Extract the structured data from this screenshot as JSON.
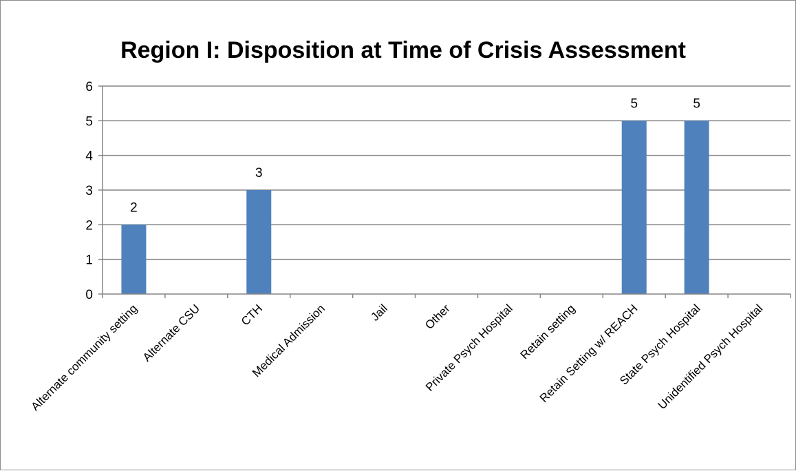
{
  "chart_data": {
    "type": "bar",
    "title": "Region I: Disposition at Time of Crisis Assessment",
    "xlabel": "",
    "ylabel": "",
    "categories": [
      "Alternate community setting",
      "Alternate CSU",
      "CTH",
      "Medical Admission",
      "Jail",
      "Other",
      "Private Psych Hospital",
      "Retain setting",
      "Retain Setting w/ REACH",
      "State Psych Hospital",
      "Unidentified Psych Hospital"
    ],
    "values": [
      2,
      0,
      3,
      0,
      0,
      0,
      0,
      0,
      5,
      5,
      0
    ],
    "data_labels": [
      "2",
      "",
      "3",
      "",
      "",
      "",
      "",
      "",
      "5",
      "5",
      ""
    ],
    "ylim": [
      0,
      6
    ],
    "yticks": [
      0,
      1,
      2,
      3,
      4,
      5,
      6
    ],
    "grid": true,
    "legend": "none",
    "bar_color": "#4f81bd",
    "grid_color": "#868686"
  }
}
